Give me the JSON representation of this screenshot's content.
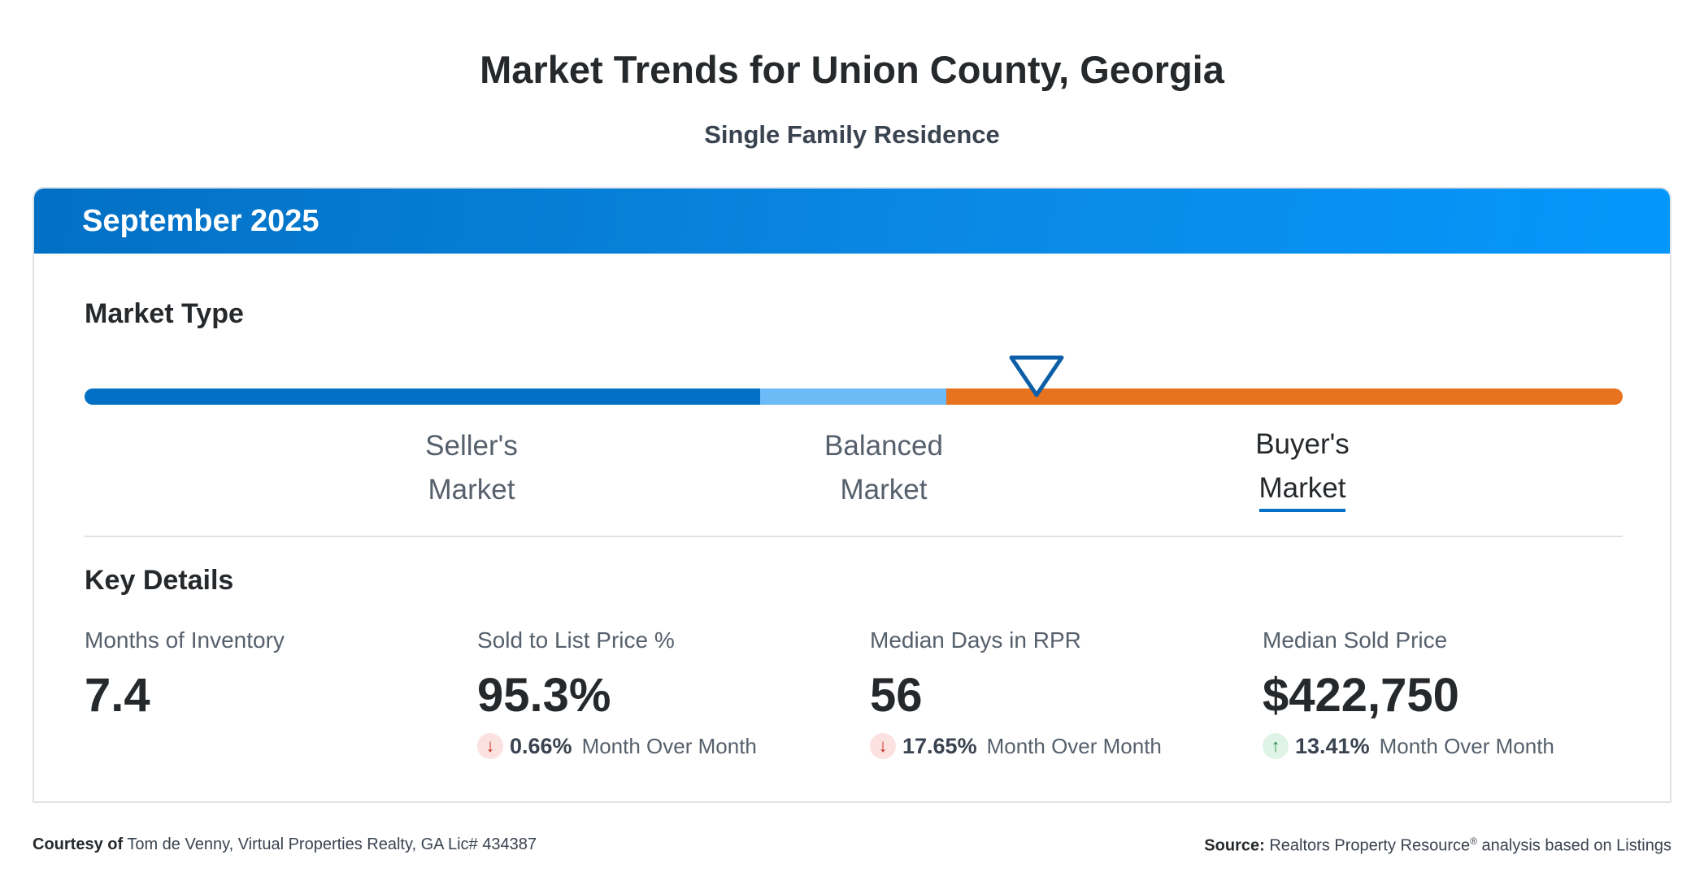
{
  "header": {
    "title": "Market Trends for Union County, Georgia",
    "subtitle": "Single Family Residence"
  },
  "card": {
    "period": "September 2025",
    "market_type": {
      "title": "Market Type",
      "segments": [
        {
          "line1": "Seller's",
          "line2": "Market",
          "color": "#0270c4"
        },
        {
          "line1": "Balanced",
          "line2": "Market",
          "color": "#6cbaf6"
        },
        {
          "line1": "Buyer's",
          "line2": "Market",
          "color": "#e8731e"
        }
      ],
      "selected": "Buyer's Market",
      "indicator_position_fraction": 0.61
    },
    "key_details": {
      "title": "Key Details",
      "metrics": [
        {
          "label": "Months of Inventory",
          "value": "7.4"
        },
        {
          "label": "Sold to List Price %",
          "value": "95.3%",
          "change": "0.66%",
          "direction": "down",
          "change_label": "Month Over Month"
        },
        {
          "label": "Median Days in RPR",
          "value": "56",
          "change": "17.65%",
          "direction": "down",
          "change_label": "Month Over Month"
        },
        {
          "label": "Median Sold Price",
          "value": "$422,750",
          "change": "13.41%",
          "direction": "up",
          "change_label": "Month Over Month"
        }
      ]
    }
  },
  "footer": {
    "courtesy_label": "Courtesy of",
    "courtesy_text": "Tom de Venny, Virtual Properties Realty, GA Lic# 434387",
    "source_label": "Source:",
    "source_text_a": "Realtors Property Resource",
    "source_reg": "®",
    "source_text_b": " analysis based on Listings"
  },
  "icons": {
    "down": "arrow-down-icon",
    "up": "arrow-up-icon"
  }
}
